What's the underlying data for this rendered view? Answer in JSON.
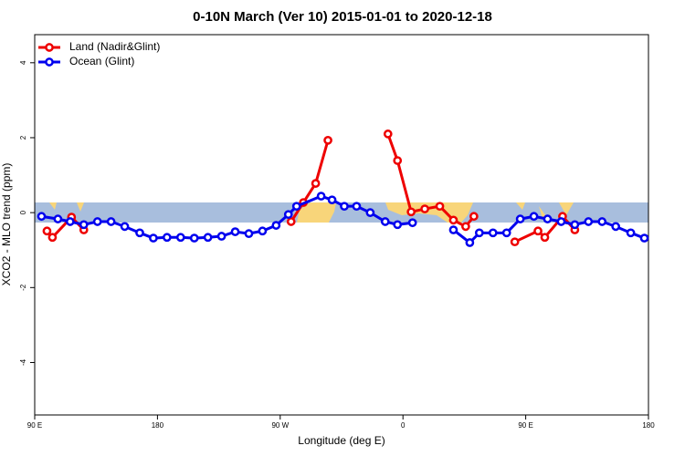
{
  "chart_data": {
    "type": "line",
    "title": "0-10N March (Ver 10)   2015-01-01 to 2020-12-18",
    "x_label": "Longitude (deg E)",
    "y_label": "XCO2 - MLO trend (ppm)",
    "xlim": [
      90,
      540
    ],
    "ylim": [
      -5.4,
      4.75
    ],
    "xticks": [
      {
        "value": 90,
        "label": "90 E"
      },
      180,
      {
        "value": 270,
        "label": "90 W"
      },
      {
        "value": 360,
        "label": "0"
      },
      {
        "value": 450,
        "label": "90 E"
      },
      {
        "value": 540,
        "label": "180"
      }
    ],
    "yticks": [
      -4,
      -2,
      0,
      2,
      4
    ],
    "legend_position": "top-left",
    "series": [
      {
        "name": "Land (Nadir&Glint)",
        "color": "#ee0000",
        "x": [
          99,
          103,
          117,
          126,
          null,
          278,
          287,
          296,
          305,
          null,
          349,
          356,
          366,
          376,
          387,
          397,
          406,
          412,
          null,
          442,
          459,
          464,
          477,
          486
        ],
        "values": [
          -0.49,
          -0.66,
          -0.12,
          -0.46,
          null,
          -0.24,
          0.27,
          0.78,
          1.93,
          null,
          2.1,
          1.39,
          0.02,
          0.1,
          0.17,
          -0.2,
          -0.37,
          -0.1,
          null,
          -0.78,
          -0.49,
          -0.66,
          -0.1,
          -0.46
        ]
      },
      {
        "name": "Ocean (Glint)",
        "color": "#0000ee",
        "x": [
          95,
          107,
          116,
          126,
          136,
          146,
          156,
          167,
          177,
          187,
          197,
          207,
          217,
          227,
          237,
          247,
          257,
          267,
          276,
          282,
          300,
          308,
          317,
          326,
          336,
          347,
          356,
          367,
          null,
          397,
          409,
          416,
          426,
          436,
          446,
          456,
          466,
          476,
          486,
          496,
          506,
          516,
          527,
          537
        ],
        "values": [
          -0.1,
          -0.17,
          -0.24,
          -0.32,
          -0.24,
          -0.24,
          -0.37,
          -0.54,
          -0.68,
          -0.66,
          -0.66,
          -0.68,
          -0.66,
          -0.63,
          -0.51,
          -0.56,
          -0.49,
          -0.34,
          -0.05,
          0.17,
          0.44,
          0.34,
          0.17,
          0.17,
          0,
          -0.24,
          -0.32,
          -0.27,
          null,
          -0.46,
          -0.8,
          -0.54,
          -0.54,
          -0.54,
          -0.17,
          -0.1,
          -0.17,
          -0.24,
          -0.32,
          -0.24,
          -0.24,
          -0.37,
          -0.54,
          -0.68
        ]
      }
    ]
  }
}
